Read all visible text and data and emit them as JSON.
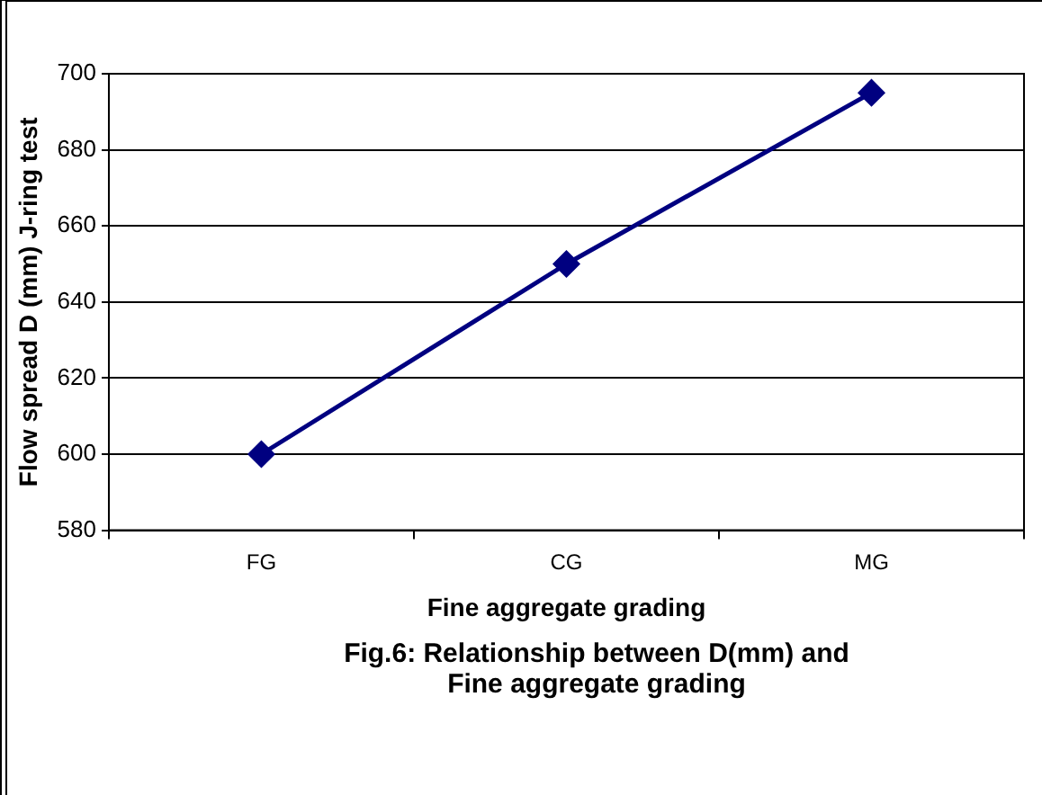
{
  "chart_data": {
    "type": "line",
    "xlabel": "Fine aggregate grading",
    "ylabel": "Flow spread D (mm) J-ring test",
    "categories": [
      "FG",
      "CG",
      "MG"
    ],
    "series": [
      {
        "color": "#000080",
        "values": [
          600,
          650,
          695
        ]
      }
    ],
    "ylim": [
      580,
      700
    ],
    "yticks": [
      580,
      600,
      620,
      640,
      660,
      680,
      700
    ],
    "grid": "y",
    "legend": false,
    "marker": "diamond",
    "line_style": "solid",
    "annotations": [
      "Fig.6: Relationship between D(mm) and Fine aggregate grading"
    ]
  }
}
